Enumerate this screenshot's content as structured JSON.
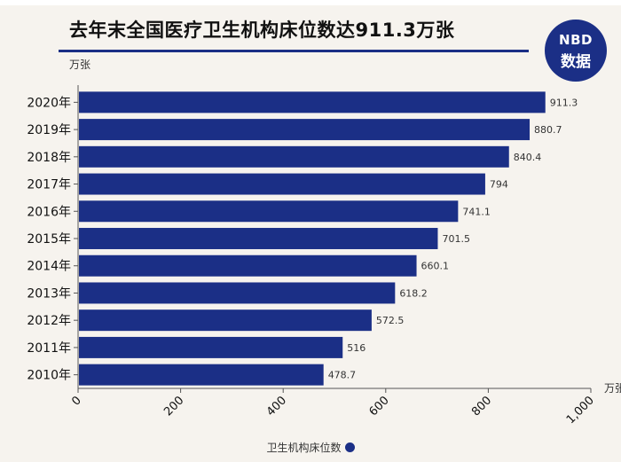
{
  "title": "去年末全国医疗卫生机构床位数达911.3万张",
  "logo": {
    "top": "NBD",
    "bottom": "数据"
  },
  "chart_data": {
    "type": "bar",
    "orientation": "horizontal",
    "title": "去年末全国医疗卫生机构床位数达911.3万张",
    "ylabel": "万张",
    "xlabel": "万张",
    "xlim": [
      0,
      1000
    ],
    "x_ticks": [
      "0",
      "200",
      "400",
      "600",
      "800",
      "1,000"
    ],
    "x_tick_values": [
      0,
      200,
      400,
      600,
      800,
      1000
    ],
    "categories": [
      "2020年",
      "2019年",
      "2018年",
      "2017年",
      "2016年",
      "2015年",
      "2014年",
      "2013年",
      "2012年",
      "2011年",
      "2010年"
    ],
    "series": [
      {
        "name": "卫生机构床位数",
        "values": [
          911.3,
          880.7,
          840.4,
          794,
          741.1,
          701.5,
          660.1,
          618.2,
          572.5,
          516,
          478.7
        ]
      }
    ],
    "value_labels": [
      "911.3",
      "880.7",
      "840.4",
      "794",
      "741.1",
      "701.5",
      "660.1",
      "618.2",
      "572.5",
      "516",
      "478.7"
    ],
    "bar_color": "#1b2f86",
    "grid": false,
    "legend_position": "bottom-center"
  }
}
